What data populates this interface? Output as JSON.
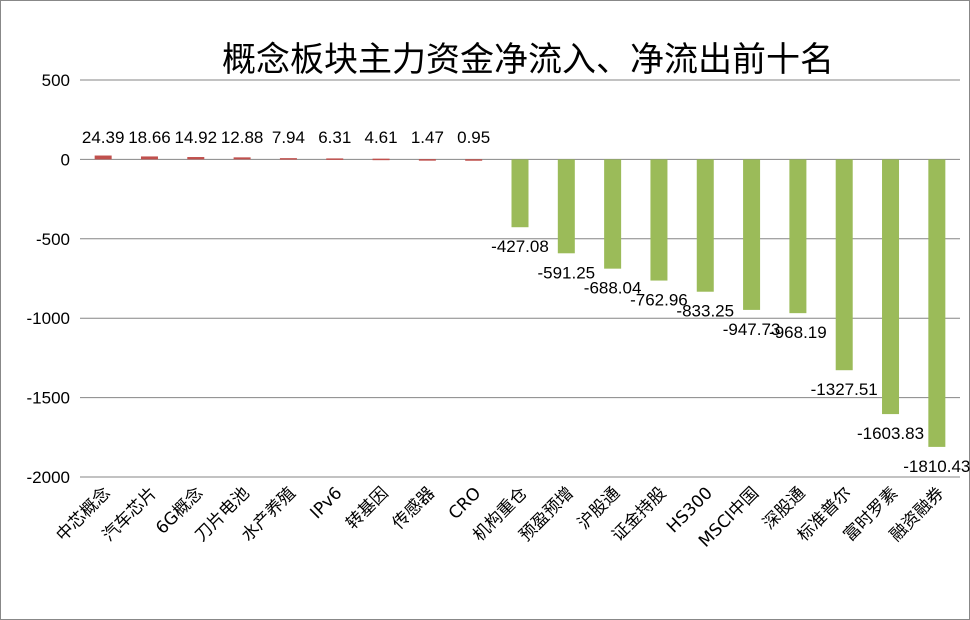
{
  "chart_data": {
    "type": "bar",
    "title": "概念板块主力资金净流入、净流出前十名",
    "categories": [
      "中芯概念",
      "汽车芯片",
      "6G概念",
      "刀片电池",
      "水产养殖",
      "IPv6",
      "转基因",
      "传感器",
      "CRO",
      "机构重仓",
      "预盈预增",
      "沪股通",
      "证金持股",
      "HS300",
      "MSCI中国",
      "深股通",
      "标准普尔",
      "富时罗素",
      "融资融券"
    ],
    "values": [
      24.39,
      18.66,
      14.92,
      12.88,
      7.94,
      6.31,
      4.61,
      1.47,
      0.95,
      -427.08,
      -591.25,
      -688.04,
      -762.96,
      -833.25,
      -947.73,
      -968.19,
      -1327.51,
      -1603.83,
      -1810.43
    ],
    "data_labels": [
      "24.39",
      "18.66",
      "14.92",
      "12.88",
      "7.94",
      "6.31",
      "4.61",
      "1.47",
      "0.95",
      "-427.08",
      "-591.25",
      "-688.04",
      "-762.96",
      "-833.25",
      "-947.73",
      "-968.19",
      "-1327.51",
      "-1603.83",
      "-1810.43"
    ],
    "yticks": [
      500,
      0,
      -500,
      -1000,
      -1500,
      -2000
    ],
    "ytick_labels": [
      "500",
      "0",
      "-500",
      "-1000",
      "-1500",
      "-2000"
    ],
    "ylim": [
      -2000,
      500
    ],
    "grid": true,
    "legend": "none",
    "colors": {
      "positive": "#c0504d",
      "negative": "#9bbb59",
      "grid": "#868686"
    }
  }
}
